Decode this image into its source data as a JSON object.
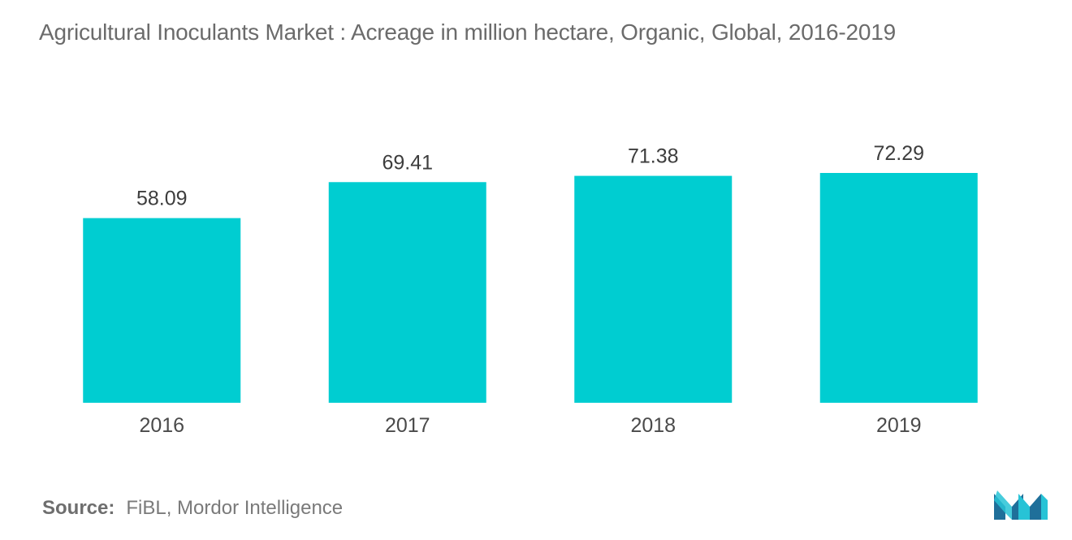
{
  "title": "Agricultural Inoculants Market : Acreage in million hectare, Organic, Global, 2016-2019",
  "source": {
    "label": "Source:",
    "text": "FiBL, Mordor Intelligence"
  },
  "colors": {
    "bar": "#00cdd1",
    "logo_dark": "#1f6f9a",
    "logo_light": "#27c3d6"
  },
  "logo": {
    "icon": "mordor-intelligence-logo-icon"
  },
  "chart_data": {
    "type": "bar",
    "categories": [
      "2016",
      "2017",
      "2018",
      "2019"
    ],
    "values": [
      58.09,
      69.41,
      71.38,
      72.29
    ],
    "value_labels": [
      "58.09",
      "69.41",
      "71.38",
      "72.29"
    ],
    "title": "Agricultural Inoculants Market : Acreage in million hectare, Organic, Global, 2016-2019",
    "xlabel": "",
    "ylabel": "",
    "ylim": [
      0,
      72.29
    ],
    "grid": false,
    "legend": "none"
  }
}
